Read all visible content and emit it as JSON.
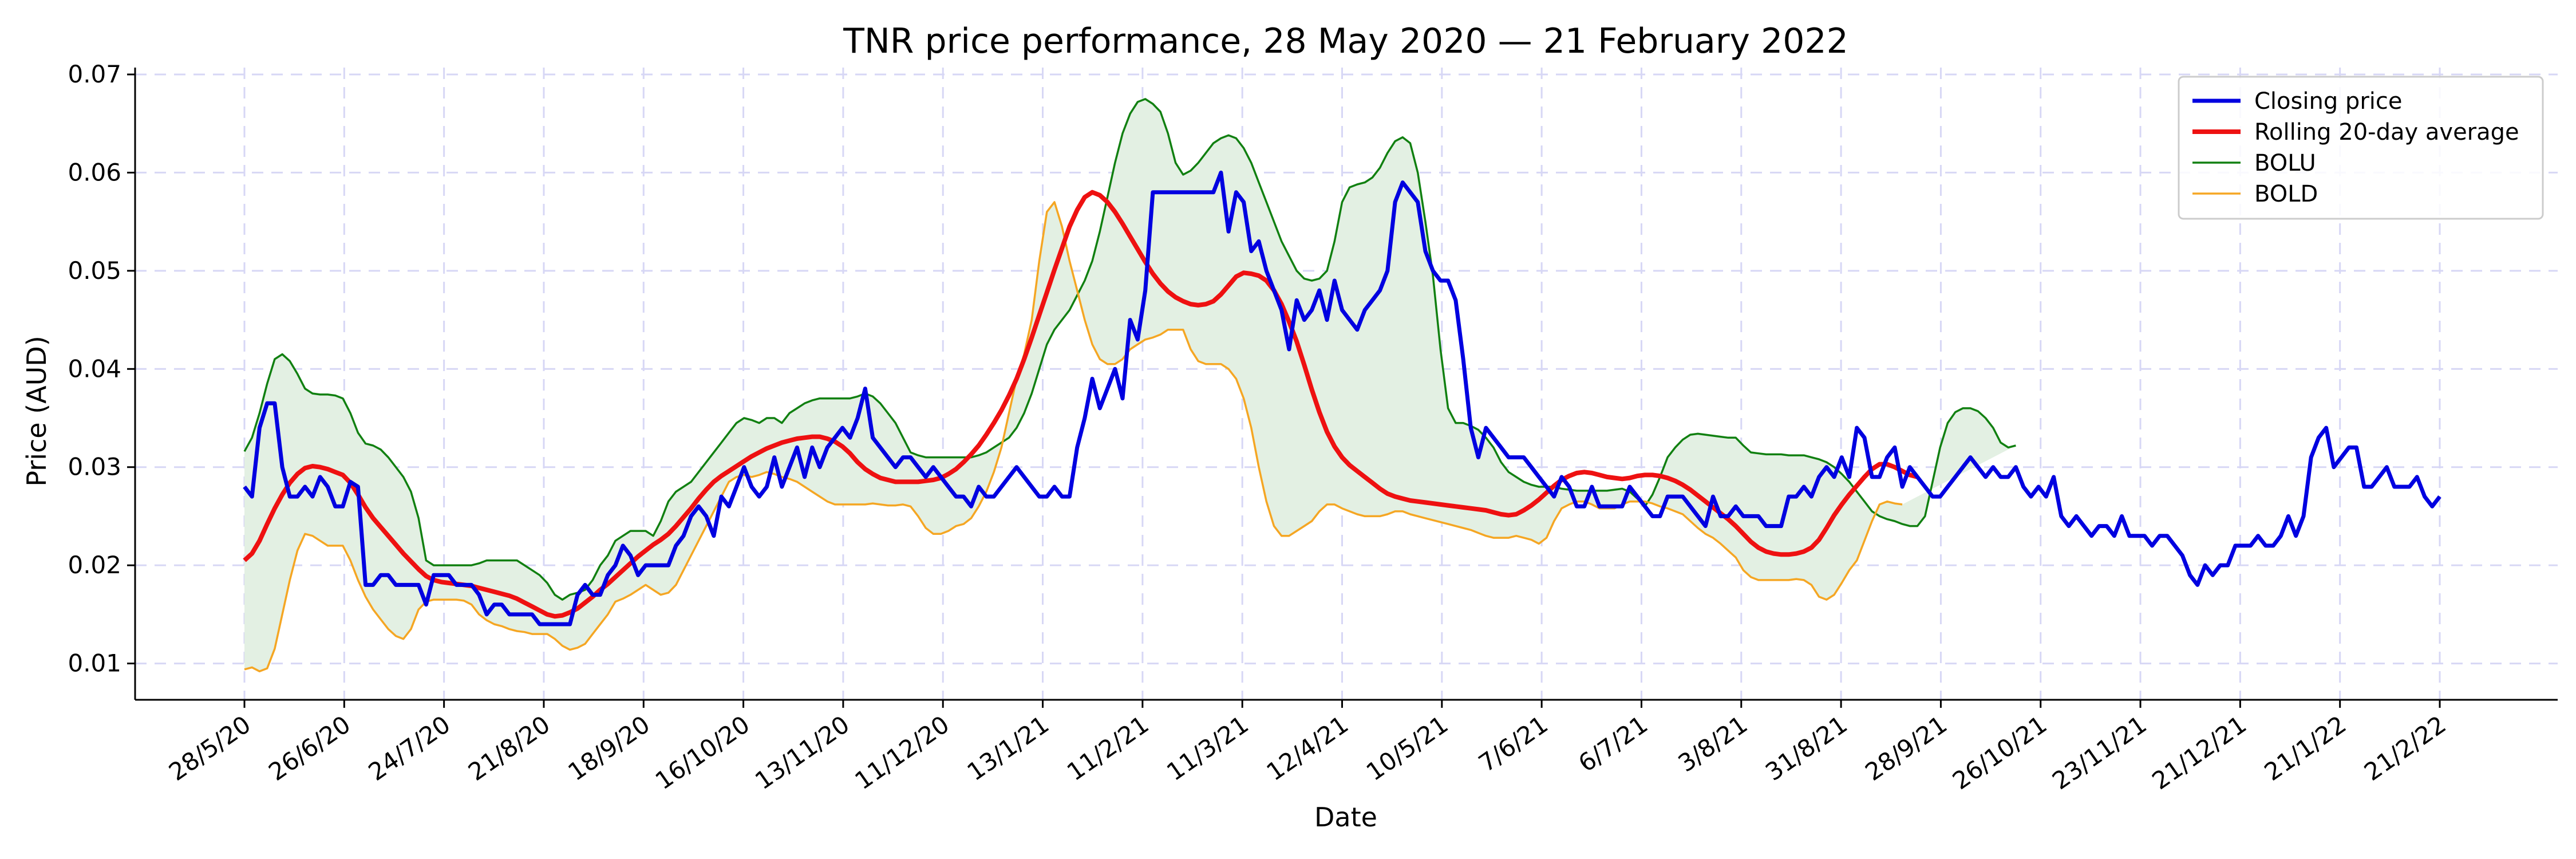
{
  "chart_data": {
    "type": "line",
    "title": "TNR price performance, 28 May 2020 — 21 February 2022",
    "xlabel": "Date",
    "ylabel": "Price (AUD)",
    "ylim": [
      0.0063,
      0.0707
    ],
    "yticks": [
      "0.01",
      "0.02",
      "0.03",
      "0.04",
      "0.05",
      "0.06",
      "0.07"
    ],
    "x_tick_labels": [
      "28/5/20",
      "26/6/20",
      "24/7/20",
      "21/8/20",
      "18/9/20",
      "16/10/20",
      "13/11/20",
      "11/12/20",
      "13/1/21",
      "11/2/21",
      "11/3/21",
      "12/4/21",
      "10/5/21",
      "7/6/21",
      "6/7/21",
      "3/8/21",
      "31/8/21",
      "28/9/21",
      "26/10/21",
      "23/11/21",
      "21/12/21",
      "21/1/22",
      "21/2/22"
    ],
    "grid": true,
    "legend_position": "top-right",
    "colors": {
      "closing": "#0000e0",
      "average": "#ee1111",
      "bolu": "#118011",
      "bold": "#f5a623",
      "band_fill": "#e3f0e3"
    },
    "series": [
      {
        "name": "Closing price",
        "values": [
          0.028,
          0.027,
          0.034,
          0.0365,
          0.0365,
          0.03,
          0.027,
          0.027,
          0.028,
          0.027,
          0.029,
          0.028,
          0.026,
          0.026,
          0.0285,
          0.028,
          0.018,
          0.018,
          0.019,
          0.019,
          0.018,
          0.018,
          0.018,
          0.018,
          0.016,
          0.019,
          0.019,
          0.019,
          0.018,
          0.018,
          0.018,
          0.017,
          0.015,
          0.016,
          0.016,
          0.015,
          0.015,
          0.015,
          0.015,
          0.014,
          0.014,
          0.014,
          0.014,
          0.014,
          0.017,
          0.018,
          0.017,
          0.017,
          0.019,
          0.02,
          0.022,
          0.021,
          0.019,
          0.02,
          0.02,
          0.02,
          0.02,
          0.022,
          0.023,
          0.025,
          0.026,
          0.025,
          0.023,
          0.027,
          0.026,
          0.028,
          0.03,
          0.028,
          0.027,
          0.028,
          0.031,
          0.028,
          0.03,
          0.032,
          0.029,
          0.032,
          0.03,
          0.032,
          0.033,
          0.034,
          0.033,
          0.035,
          0.038,
          0.033,
          0.032,
          0.031,
          0.03,
          0.031,
          0.031,
          0.03,
          0.029,
          0.03,
          0.029,
          0.028,
          0.027,
          0.027,
          0.026,
          0.028,
          0.027,
          0.027,
          0.028,
          0.029,
          0.03,
          0.029,
          0.028,
          0.027,
          0.027,
          0.028,
          0.027,
          0.027,
          0.032,
          0.035,
          0.039,
          0.036,
          0.038,
          0.04,
          0.037,
          0.045,
          0.043,
          0.048,
          0.058,
          0.058,
          0.058,
          0.058,
          0.058,
          0.058,
          0.058,
          0.058,
          0.058,
          0.06,
          0.054,
          0.058,
          0.057,
          0.052,
          0.053,
          0.05,
          0.048,
          0.046,
          0.042,
          0.047,
          0.045,
          0.046,
          0.048,
          0.045,
          0.049,
          0.046,
          0.045,
          0.044,
          0.046,
          0.047,
          0.048,
          0.05,
          0.057,
          0.059,
          0.058,
          0.057,
          0.052,
          0.05,
          0.049,
          0.049,
          0.047,
          0.041,
          0.034,
          0.031,
          0.034,
          0.033,
          0.032,
          0.031,
          0.031,
          0.031,
          0.03,
          0.029,
          0.028,
          0.027,
          0.029,
          0.028,
          0.026,
          0.026,
          0.028,
          0.026,
          0.026,
          0.026,
          0.026,
          0.028,
          0.027,
          0.026,
          0.025,
          0.025,
          0.027,
          0.027,
          0.027,
          0.026,
          0.025,
          0.024,
          0.027,
          0.025,
          0.025,
          0.026,
          0.025,
          0.025,
          0.025,
          0.024,
          0.024,
          0.024,
          0.027,
          0.027,
          0.028,
          0.027,
          0.029,
          0.03,
          0.029,
          0.031,
          0.029,
          0.034,
          0.033,
          0.029,
          0.029,
          0.031,
          0.032,
          0.028,
          0.03,
          0.029,
          0.028,
          0.027,
          0.027,
          0.028,
          0.029,
          0.03,
          0.031,
          0.03,
          0.029,
          0.03,
          0.029,
          0.029,
          0.03,
          0.028,
          0.027,
          0.028,
          0.027,
          0.029,
          0.025,
          0.024,
          0.025,
          0.024,
          0.023,
          0.024,
          0.024,
          0.023,
          0.025,
          0.023,
          0.023,
          0.023,
          0.022,
          0.023,
          0.023,
          0.022,
          0.021,
          0.019,
          0.018,
          0.02,
          0.019,
          0.02,
          0.02,
          0.022,
          0.022,
          0.022,
          0.023,
          0.022,
          0.022,
          0.023,
          0.025,
          0.023,
          0.025,
          0.031,
          0.033,
          0.034,
          0.03,
          0.031,
          0.032,
          0.032,
          0.028,
          0.028,
          0.029,
          0.03,
          0.028,
          0.028,
          0.028,
          0.029,
          0.027,
          0.026,
          0.027
        ]
      },
      {
        "name": "Rolling 20-day average",
        "values": [
          0.0205,
          0.0212,
          0.0225,
          0.0242,
          0.0258,
          0.0272,
          0.0284,
          0.0293,
          0.0299,
          0.0301,
          0.03,
          0.0298,
          0.0295,
          0.0292,
          0.0284,
          0.0272,
          0.0259,
          0.0248,
          0.0239,
          0.023,
          0.0221,
          0.0212,
          0.0204,
          0.0196,
          0.0189,
          0.0185,
          0.0183,
          0.0182,
          0.0181,
          0.018,
          0.0179,
          0.0177,
          0.0175,
          0.0173,
          0.0171,
          0.0169,
          0.0166,
          0.0162,
          0.0158,
          0.0154,
          0.015,
          0.0148,
          0.0149,
          0.0152,
          0.0156,
          0.0162,
          0.0168,
          0.0175,
          0.0181,
          0.0188,
          0.0195,
          0.0202,
          0.0209,
          0.0215,
          0.0221,
          0.0226,
          0.0232,
          0.024,
          0.0249,
          0.0258,
          0.0268,
          0.0277,
          0.0285,
          0.0291,
          0.0296,
          0.0301,
          0.0306,
          0.0311,
          0.0315,
          0.0319,
          0.0322,
          0.0325,
          0.0327,
          0.0329,
          0.033,
          0.0331,
          0.0331,
          0.0329,
          0.0326,
          0.0321,
          0.0314,
          0.0305,
          0.0298,
          0.0293,
          0.0289,
          0.0287,
          0.0285,
          0.0285,
          0.0285,
          0.0285,
          0.0286,
          0.0287,
          0.0289,
          0.0293,
          0.0298,
          0.0305,
          0.0313,
          0.0322,
          0.0333,
          0.0345,
          0.0358,
          0.0373,
          0.039,
          0.041,
          0.0432,
          0.0455,
          0.0478,
          0.0501,
          0.0523,
          0.0545,
          0.0562,
          0.0575,
          0.058,
          0.0577,
          0.057,
          0.056,
          0.0548,
          0.0535,
          0.0522,
          0.0509,
          0.0497,
          0.0487,
          0.0479,
          0.0473,
          0.0469,
          0.0466,
          0.0465,
          0.0466,
          0.0469,
          0.0476,
          0.0485,
          0.0494,
          0.0498,
          0.0497,
          0.0495,
          0.049,
          0.048,
          0.0466,
          0.0448,
          0.0428,
          0.0404,
          0.0379,
          0.0356,
          0.0336,
          0.0321,
          0.031,
          0.0302,
          0.0296,
          0.029,
          0.0284,
          0.0278,
          0.0273,
          0.027,
          0.0268,
          0.0266,
          0.0265,
          0.0264,
          0.0263,
          0.0262,
          0.0261,
          0.026,
          0.0259,
          0.0258,
          0.0257,
          0.0256,
          0.0254,
          0.0252,
          0.0251,
          0.0252,
          0.0256,
          0.0261,
          0.0267,
          0.0274,
          0.0281,
          0.0287,
          0.0291,
          0.0294,
          0.0295,
          0.0294,
          0.0292,
          0.029,
          0.0289,
          0.0288,
          0.0289,
          0.0291,
          0.0292,
          0.0292,
          0.0291,
          0.0289,
          0.0286,
          0.0282,
          0.0277,
          0.0271,
          0.0265,
          0.0259,
          0.0253,
          0.0247,
          0.024,
          0.0232,
          0.0224,
          0.0218,
          0.0214,
          0.0212,
          0.0211,
          0.0211,
          0.0212,
          0.0214,
          0.0218,
          0.0226,
          0.0238,
          0.0251,
          0.0262,
          0.0272,
          0.0281,
          0.029,
          0.0298,
          0.0303,
          0.0303,
          0.03,
          0.0296,
          0.0292,
          0.029
        ]
      },
      {
        "name": "BOLU",
        "values": [
          0.0316,
          0.033,
          0.0355,
          0.0385,
          0.041,
          0.0415,
          0.0408,
          0.0395,
          0.038,
          0.0375,
          0.0374,
          0.0374,
          0.0373,
          0.037,
          0.0355,
          0.0335,
          0.0324,
          0.0322,
          0.0318,
          0.031,
          0.03,
          0.029,
          0.0275,
          0.0248,
          0.0205,
          0.02,
          0.02,
          0.02,
          0.02,
          0.02,
          0.02,
          0.0202,
          0.0205,
          0.0205,
          0.0205,
          0.0205,
          0.0205,
          0.02,
          0.0195,
          0.019,
          0.0182,
          0.017,
          0.0165,
          0.017,
          0.0172,
          0.0175,
          0.0185,
          0.02,
          0.021,
          0.0225,
          0.023,
          0.0235,
          0.0235,
          0.0235,
          0.023,
          0.0245,
          0.0265,
          0.0275,
          0.028,
          0.0285,
          0.0295,
          0.0305,
          0.0315,
          0.0325,
          0.0335,
          0.0345,
          0.035,
          0.0348,
          0.0345,
          0.035,
          0.035,
          0.0345,
          0.0355,
          0.036,
          0.0365,
          0.0368,
          0.037,
          0.037,
          0.037,
          0.037,
          0.037,
          0.0372,
          0.0375,
          0.0372,
          0.0365,
          0.0355,
          0.0345,
          0.033,
          0.0315,
          0.0312,
          0.031,
          0.031,
          0.031,
          0.031,
          0.031,
          0.031,
          0.031,
          0.0312,
          0.0315,
          0.032,
          0.0325,
          0.033,
          0.034,
          0.0355,
          0.0375,
          0.04,
          0.0425,
          0.044,
          0.045,
          0.046,
          0.0475,
          0.049,
          0.051,
          0.054,
          0.0575,
          0.061,
          0.064,
          0.066,
          0.0672,
          0.0675,
          0.067,
          0.0662,
          0.064,
          0.061,
          0.0598,
          0.0602,
          0.061,
          0.062,
          0.063,
          0.0635,
          0.0638,
          0.0635,
          0.0625,
          0.061,
          0.059,
          0.057,
          0.055,
          0.053,
          0.0515,
          0.05,
          0.0492,
          0.049,
          0.0492,
          0.05,
          0.053,
          0.057,
          0.0585,
          0.0588,
          0.059,
          0.0595,
          0.0605,
          0.062,
          0.0632,
          0.0636,
          0.063,
          0.06,
          0.055,
          0.0495,
          0.042,
          0.036,
          0.0345,
          0.0345,
          0.0342,
          0.0338,
          0.033,
          0.032,
          0.0305,
          0.0295,
          0.029,
          0.0285,
          0.0282,
          0.028,
          0.028,
          0.028,
          0.0278,
          0.0277,
          0.0276,
          0.0276,
          0.0276,
          0.0276,
          0.0276,
          0.0277,
          0.0278,
          0.0275,
          0.0268,
          0.026,
          0.0272,
          0.029,
          0.031,
          0.032,
          0.0328,
          0.0333,
          0.0334,
          0.0333,
          0.0332,
          0.0331,
          0.033,
          0.033,
          0.0322,
          0.0315,
          0.0314,
          0.0313,
          0.0313,
          0.0313,
          0.0312,
          0.0312,
          0.0312,
          0.031,
          0.0308,
          0.0305,
          0.03,
          0.0293,
          0.0285,
          0.0275,
          0.0265,
          0.0255,
          0.025,
          0.0247,
          0.0245,
          0.0242,
          0.024,
          0.024,
          0.025,
          0.0285,
          0.032,
          0.0345,
          0.0356,
          0.036,
          0.036,
          0.0357,
          0.035,
          0.034,
          0.0325,
          0.032,
          0.0322
        ]
      },
      {
        "name": "BOLD",
        "values": [
          0.0094,
          0.0096,
          0.0092,
          0.0095,
          0.0115,
          0.015,
          0.0185,
          0.0215,
          0.0232,
          0.023,
          0.0225,
          0.022,
          0.022,
          0.022,
          0.0205,
          0.0185,
          0.0168,
          0.0155,
          0.0145,
          0.0135,
          0.0128,
          0.0125,
          0.0135,
          0.0155,
          0.0163,
          0.0165,
          0.0165,
          0.0165,
          0.0165,
          0.0164,
          0.016,
          0.015,
          0.0144,
          0.014,
          0.0138,
          0.0135,
          0.0133,
          0.0132,
          0.013,
          0.013,
          0.013,
          0.0125,
          0.0118,
          0.0114,
          0.0116,
          0.012,
          0.013,
          0.014,
          0.015,
          0.0163,
          0.0166,
          0.017,
          0.0175,
          0.018,
          0.0175,
          0.017,
          0.0172,
          0.018,
          0.0195,
          0.021,
          0.0225,
          0.024,
          0.0255,
          0.027,
          0.0285,
          0.029,
          0.0292,
          0.029,
          0.0292,
          0.0295,
          0.0293,
          0.029,
          0.0288,
          0.0285,
          0.028,
          0.0275,
          0.027,
          0.0265,
          0.0262,
          0.0262,
          0.0262,
          0.0262,
          0.0262,
          0.0263,
          0.0262,
          0.0261,
          0.0261,
          0.0262,
          0.026,
          0.025,
          0.0238,
          0.0232,
          0.0232,
          0.0235,
          0.024,
          0.0242,
          0.0248,
          0.026,
          0.0275,
          0.0295,
          0.032,
          0.0355,
          0.039,
          0.0415,
          0.045,
          0.051,
          0.056,
          0.057,
          0.0545,
          0.051,
          0.048,
          0.045,
          0.0425,
          0.041,
          0.0405,
          0.0405,
          0.041,
          0.042,
          0.0425,
          0.043,
          0.0432,
          0.0435,
          0.044,
          0.044,
          0.044,
          0.042,
          0.0408,
          0.0405,
          0.0405,
          0.0405,
          0.04,
          0.039,
          0.037,
          0.034,
          0.03,
          0.0265,
          0.024,
          0.023,
          0.023,
          0.0235,
          0.024,
          0.0245,
          0.0255,
          0.0262,
          0.0262,
          0.0258,
          0.0255,
          0.0252,
          0.025,
          0.025,
          0.025,
          0.0252,
          0.0255,
          0.0255,
          0.0252,
          0.025,
          0.0248,
          0.0246,
          0.0244,
          0.0242,
          0.024,
          0.0238,
          0.0236,
          0.0233,
          0.023,
          0.0228,
          0.0228,
          0.0228,
          0.023,
          0.0228,
          0.0226,
          0.0222,
          0.0228,
          0.0245,
          0.0258,
          0.0262,
          0.0265,
          0.0265,
          0.0262,
          0.0258,
          0.0258,
          0.0258,
          0.0262,
          0.0265,
          0.0265,
          0.0265,
          0.0263,
          0.026,
          0.0258,
          0.0255,
          0.0252,
          0.0245,
          0.0238,
          0.0232,
          0.0228,
          0.0222,
          0.0215,
          0.0208,
          0.0195,
          0.0188,
          0.0185,
          0.0185,
          0.0185,
          0.0185,
          0.0185,
          0.0186,
          0.0185,
          0.018,
          0.0168,
          0.0165,
          0.017,
          0.0182,
          0.0195,
          0.0205,
          0.0225,
          0.0245,
          0.0262,
          0.0265,
          0.0263,
          0.0262
        ]
      }
    ]
  }
}
